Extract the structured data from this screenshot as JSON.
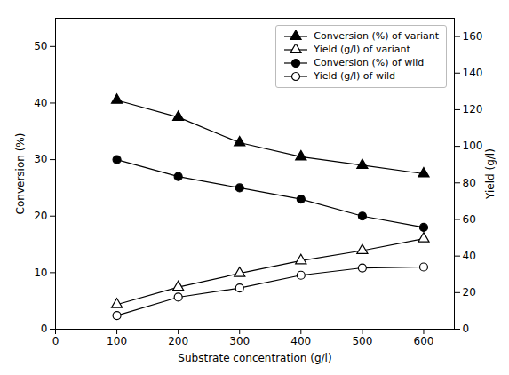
{
  "chart_data": {
    "type": "line",
    "xlabel": "Substrate concentration (g/l)",
    "ylabel": "Conversion (%)",
    "y2label": "Yield (g/l)",
    "x": [
      100,
      200,
      300,
      400,
      500,
      600
    ],
    "xlim": [
      0,
      650
    ],
    "xticks": [
      0,
      100,
      200,
      300,
      400,
      500,
      600
    ],
    "ylim": [
      0,
      55
    ],
    "yticks": [
      0,
      10,
      20,
      30,
      40,
      50
    ],
    "y2lim": [
      0,
      170
    ],
    "y2ticks": [
      0,
      20,
      40,
      60,
      80,
      100,
      120,
      140,
      160
    ],
    "grid": false,
    "legend": "upper right",
    "series": [
      {
        "name": "Conversion (%) of variant",
        "axis": "y",
        "color": "#000000",
        "marker": "triangle",
        "line_style": "solid",
        "values": [
          40.5,
          37.5,
          33.0,
          30.5,
          29.0,
          27.5
        ]
      },
      {
        "name": "Yield (g/l) of variant",
        "axis": "y2",
        "color": "#000000",
        "marker": "triangle-open",
        "line_style": "solid",
        "values": [
          13.5,
          23.0,
          30.5,
          37.5,
          43.0,
          49.5
        ]
      },
      {
        "name": "Conversion (%) of wild",
        "axis": "y",
        "color": "#000000",
        "marker": "circle",
        "line_style": "solid",
        "values": [
          30.0,
          27.0,
          25.0,
          23.0,
          20.0,
          18.0
        ]
      },
      {
        "name": "Yield (g/l) of wild",
        "axis": "y2",
        "color": "#000000",
        "marker": "circle-open",
        "line_style": "solid",
        "values": [
          7.5,
          17.5,
          22.5,
          29.5,
          33.5,
          34.0
        ]
      }
    ]
  }
}
